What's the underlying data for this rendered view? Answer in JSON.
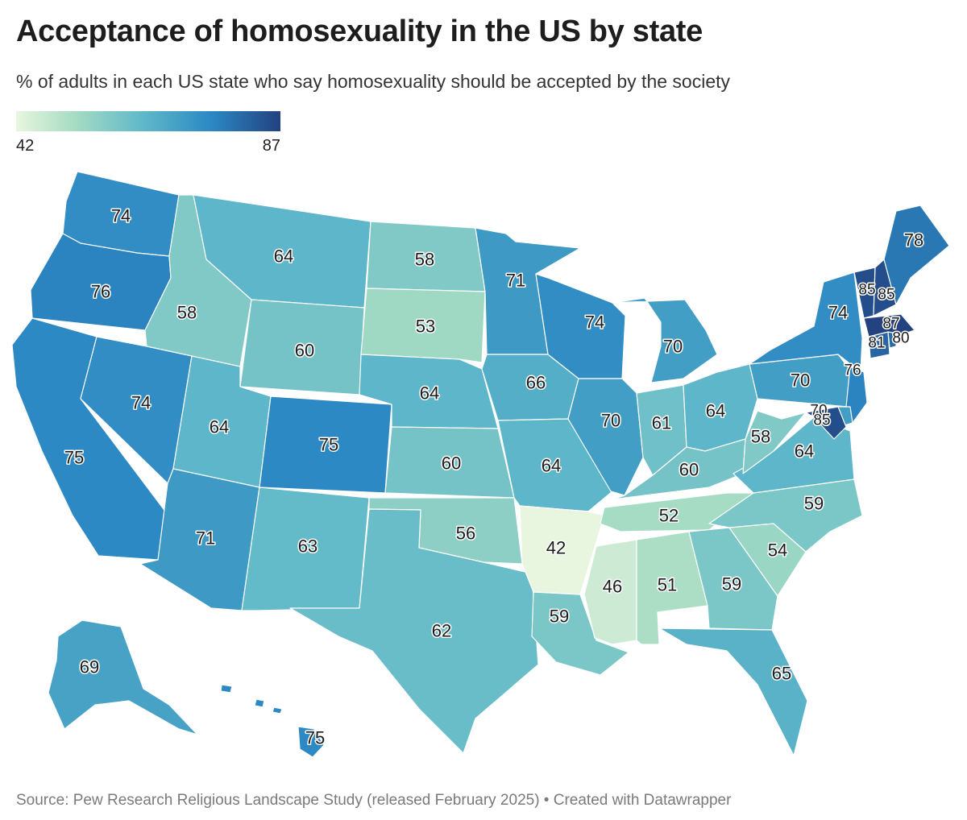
{
  "title": "Acceptance of homosexuality in the US by state",
  "subtitle": "% of adults in each US state who say homosexuality should be accepted by the society",
  "legend": {
    "min": "42",
    "max": "87"
  },
  "source": "Source: Pew Research Religious Landscape Study (released February 2025) • Created with Datawrapper",
  "colors": {
    "low": "#e8f6df",
    "mid_low": "#a6dcc3",
    "mid": "#5fb8c9",
    "mid_high": "#2b88c3",
    "high": "#23427f",
    "border": "#ffffff"
  },
  "chart_data": {
    "type": "choropleth",
    "value_range": [
      42,
      87
    ],
    "states": [
      {
        "code": "WA",
        "value": 74
      },
      {
        "code": "OR",
        "value": 76
      },
      {
        "code": "CA",
        "value": 75
      },
      {
        "code": "ID",
        "value": 58
      },
      {
        "code": "NV",
        "value": 74
      },
      {
        "code": "MT",
        "value": 64
      },
      {
        "code": "WY",
        "value": 60
      },
      {
        "code": "UT",
        "value": 64
      },
      {
        "code": "AZ",
        "value": 71
      },
      {
        "code": "CO",
        "value": 75
      },
      {
        "code": "NM",
        "value": 63
      },
      {
        "code": "ND",
        "value": 58
      },
      {
        "code": "SD",
        "value": 53
      },
      {
        "code": "NE",
        "value": 64
      },
      {
        "code": "KS",
        "value": 60
      },
      {
        "code": "OK",
        "value": 56
      },
      {
        "code": "TX",
        "value": 62
      },
      {
        "code": "MN",
        "value": 71
      },
      {
        "code": "IA",
        "value": 66
      },
      {
        "code": "MO",
        "value": 64
      },
      {
        "code": "AR",
        "value": 42
      },
      {
        "code": "LA",
        "value": 59
      },
      {
        "code": "WI",
        "value": 74
      },
      {
        "code": "IL",
        "value": 70
      },
      {
        "code": "MI",
        "value": 70
      },
      {
        "code": "IN",
        "value": 61
      },
      {
        "code": "OH",
        "value": 64
      },
      {
        "code": "KY",
        "value": 60
      },
      {
        "code": "TN",
        "value": 52
      },
      {
        "code": "MS",
        "value": 46
      },
      {
        "code": "AL",
        "value": 51
      },
      {
        "code": "GA",
        "value": 59
      },
      {
        "code": "FL",
        "value": 65
      },
      {
        "code": "SC",
        "value": 54
      },
      {
        "code": "NC",
        "value": 59
      },
      {
        "code": "VA",
        "value": 64
      },
      {
        "code": "WV",
        "value": 58
      },
      {
        "code": "PA",
        "value": 70
      },
      {
        "code": "NY",
        "value": 74
      },
      {
        "code": "NJ",
        "value": 76
      },
      {
        "code": "DE",
        "value": 70
      },
      {
        "code": "MD",
        "value": 85
      },
      {
        "code": "CT",
        "value": 81
      },
      {
        "code": "RI",
        "value": 80
      },
      {
        "code": "MA",
        "value": 87
      },
      {
        "code": "VT",
        "value": 85
      },
      {
        "code": "NH",
        "value": 85
      },
      {
        "code": "ME",
        "value": 78
      },
      {
        "code": "AK",
        "value": 69
      },
      {
        "code": "HI",
        "value": 75
      }
    ]
  }
}
